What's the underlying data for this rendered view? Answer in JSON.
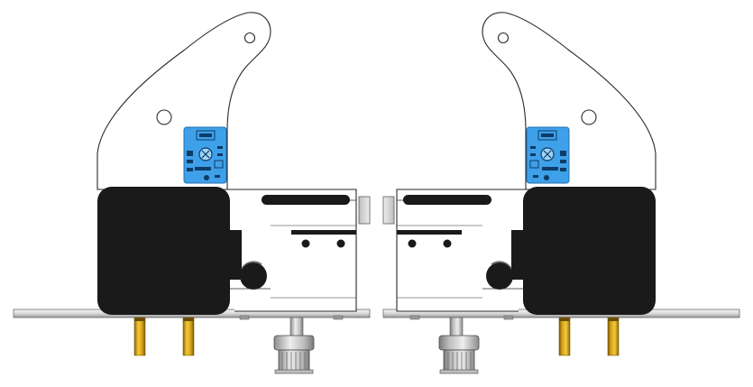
{
  "figure": {
    "description_visible_text": [],
    "colors": {
      "outline": "#2a2a2a",
      "plate": "#ffffff",
      "motor_body": "#1a1a1a",
      "sensor_board": "#3ea0e8",
      "sensor_board_edge": "#1f6fb0",
      "standoff_brass": "#e2b21f",
      "standoff_shadow": "#9c7510",
      "pulley_metal": "#cfcfcf",
      "base_bar": "#e6e6e6",
      "guide_block": "#d9d9d9"
    },
    "assemblies": [
      {
        "id": "left-assembly",
        "mirrored": false
      },
      {
        "id": "right-assembly",
        "mirrored": true
      }
    ]
  }
}
